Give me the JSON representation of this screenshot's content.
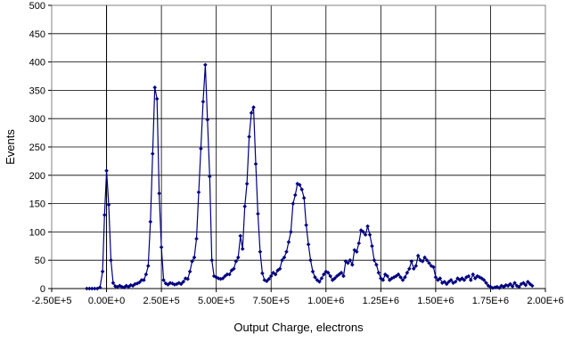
{
  "chart_data": {
    "type": "line",
    "title": "",
    "xlabel": "Output Charge, electrons",
    "ylabel": "Events",
    "xlim": [
      -250000,
      2000000
    ],
    "ylim": [
      0,
      500
    ],
    "grid": true,
    "legend": "none",
    "x_tick_values": [
      -250000,
      0,
      250000,
      500000,
      750000,
      1000000,
      1250000,
      1500000,
      1750000,
      2000000
    ],
    "x_tick_labels": [
      "-2.50E+5",
      "0.00E+0",
      "2.50E+5",
      "5.00E+5",
      "7.50E+5",
      "1.00E+6",
      "1.25E+6",
      "1.50E+6",
      "1.75E+6",
      "2.00E+6"
    ],
    "y_tick_values": [
      0,
      50,
      100,
      150,
      200,
      250,
      300,
      350,
      400,
      450,
      500
    ],
    "y_tick_labels": [
      "0",
      "50",
      "100",
      "150",
      "200",
      "250",
      "300",
      "350",
      "400",
      "450",
      "500"
    ],
    "colors": {
      "series": "#000080",
      "grid": "#000000",
      "plot_border": "#808080"
    },
    "series": [
      {
        "marker": "diamond",
        "points": [
          [
            -90000,
            0
          ],
          [
            -78000,
            0
          ],
          [
            -66000,
            0
          ],
          [
            -54000,
            0
          ],
          [
            -42000,
            0
          ],
          [
            -30000,
            2
          ],
          [
            -18000,
            30
          ],
          [
            -9000,
            130
          ],
          [
            0,
            208
          ],
          [
            10000,
            148
          ],
          [
            20000,
            50
          ],
          [
            30000,
            10
          ],
          [
            40000,
            4
          ],
          [
            50000,
            3
          ],
          [
            60000,
            5
          ],
          [
            70000,
            3
          ],
          [
            80000,
            2
          ],
          [
            90000,
            5
          ],
          [
            100000,
            3
          ],
          [
            110000,
            6
          ],
          [
            120000,
            5
          ],
          [
            130000,
            8
          ],
          [
            140000,
            9
          ],
          [
            150000,
            11
          ],
          [
            160000,
            15
          ],
          [
            170000,
            15
          ],
          [
            180000,
            25
          ],
          [
            190000,
            40
          ],
          [
            200000,
            118
          ],
          [
            210000,
            238
          ],
          [
            220000,
            355
          ],
          [
            230000,
            335
          ],
          [
            240000,
            168
          ],
          [
            250000,
            73
          ],
          [
            260000,
            15
          ],
          [
            270000,
            9
          ],
          [
            280000,
            7
          ],
          [
            290000,
            10
          ],
          [
            300000,
            9
          ],
          [
            310000,
            7
          ],
          [
            320000,
            8
          ],
          [
            330000,
            10
          ],
          [
            340000,
            8
          ],
          [
            350000,
            12
          ],
          [
            360000,
            18
          ],
          [
            370000,
            17
          ],
          [
            380000,
            30
          ],
          [
            390000,
            48
          ],
          [
            400000,
            55
          ],
          [
            410000,
            88
          ],
          [
            420000,
            170
          ],
          [
            430000,
            247
          ],
          [
            440000,
            330
          ],
          [
            450000,
            395
          ],
          [
            460000,
            298
          ],
          [
            470000,
            198
          ],
          [
            480000,
            50
          ],
          [
            490000,
            22
          ],
          [
            500000,
            20
          ],
          [
            510000,
            18
          ],
          [
            520000,
            17
          ],
          [
            530000,
            18
          ],
          [
            540000,
            22
          ],
          [
            550000,
            25
          ],
          [
            560000,
            25
          ],
          [
            570000,
            32
          ],
          [
            580000,
            35
          ],
          [
            590000,
            48
          ],
          [
            600000,
            55
          ],
          [
            610000,
            93
          ],
          [
            620000,
            70
          ],
          [
            630000,
            145
          ],
          [
            640000,
            185
          ],
          [
            650000,
            268
          ],
          [
            660000,
            310
          ],
          [
            670000,
            320
          ],
          [
            680000,
            220
          ],
          [
            690000,
            132
          ],
          [
            700000,
            65
          ],
          [
            710000,
            27
          ],
          [
            720000,
            15
          ],
          [
            730000,
            13
          ],
          [
            740000,
            17
          ],
          [
            750000,
            22
          ],
          [
            760000,
            28
          ],
          [
            770000,
            25
          ],
          [
            780000,
            32
          ],
          [
            790000,
            35
          ],
          [
            800000,
            50
          ],
          [
            810000,
            55
          ],
          [
            820000,
            65
          ],
          [
            830000,
            82
          ],
          [
            840000,
            100
          ],
          [
            850000,
            150
          ],
          [
            860000,
            165
          ],
          [
            870000,
            185
          ],
          [
            880000,
            183
          ],
          [
            890000,
            175
          ],
          [
            900000,
            160
          ],
          [
            910000,
            112
          ],
          [
            920000,
            78
          ],
          [
            930000,
            50
          ],
          [
            940000,
            30
          ],
          [
            950000,
            20
          ],
          [
            960000,
            15
          ],
          [
            970000,
            12
          ],
          [
            980000,
            18
          ],
          [
            990000,
            25
          ],
          [
            1000000,
            30
          ],
          [
            1010000,
            28
          ],
          [
            1020000,
            22
          ],
          [
            1030000,
            15
          ],
          [
            1040000,
            18
          ],
          [
            1050000,
            22
          ],
          [
            1060000,
            25
          ],
          [
            1070000,
            28
          ],
          [
            1080000,
            22
          ],
          [
            1090000,
            48
          ],
          [
            1100000,
            45
          ],
          [
            1110000,
            50
          ],
          [
            1120000,
            42
          ],
          [
            1130000,
            68
          ],
          [
            1140000,
            65
          ],
          [
            1150000,
            80
          ],
          [
            1160000,
            103
          ],
          [
            1170000,
            100
          ],
          [
            1180000,
            95
          ],
          [
            1190000,
            110
          ],
          [
            1200000,
            95
          ],
          [
            1210000,
            75
          ],
          [
            1220000,
            50
          ],
          [
            1230000,
            42
          ],
          [
            1240000,
            28
          ],
          [
            1250000,
            18
          ],
          [
            1260000,
            15
          ],
          [
            1270000,
            25
          ],
          [
            1280000,
            22
          ],
          [
            1290000,
            15
          ],
          [
            1300000,
            18
          ],
          [
            1310000,
            20
          ],
          [
            1320000,
            22
          ],
          [
            1330000,
            25
          ],
          [
            1340000,
            20
          ],
          [
            1350000,
            15
          ],
          [
            1360000,
            20
          ],
          [
            1370000,
            28
          ],
          [
            1380000,
            35
          ],
          [
            1390000,
            48
          ],
          [
            1400000,
            35
          ],
          [
            1410000,
            40
          ],
          [
            1420000,
            58
          ],
          [
            1430000,
            50
          ],
          [
            1440000,
            48
          ],
          [
            1450000,
            55
          ],
          [
            1460000,
            50
          ],
          [
            1470000,
            45
          ],
          [
            1480000,
            40
          ],
          [
            1490000,
            38
          ],
          [
            1500000,
            20
          ],
          [
            1510000,
            15
          ],
          [
            1520000,
            18
          ],
          [
            1530000,
            10
          ],
          [
            1540000,
            12
          ],
          [
            1550000,
            8
          ],
          [
            1560000,
            12
          ],
          [
            1570000,
            15
          ],
          [
            1580000,
            10
          ],
          [
            1590000,
            12
          ],
          [
            1600000,
            18
          ],
          [
            1610000,
            15
          ],
          [
            1620000,
            18
          ],
          [
            1630000,
            15
          ],
          [
            1640000,
            20
          ],
          [
            1650000,
            22
          ],
          [
            1660000,
            15
          ],
          [
            1670000,
            25
          ],
          [
            1680000,
            18
          ],
          [
            1690000,
            22
          ],
          [
            1700000,
            20
          ],
          [
            1710000,
            18
          ],
          [
            1720000,
            15
          ],
          [
            1730000,
            10
          ],
          [
            1740000,
            5
          ],
          [
            1750000,
            3
          ],
          [
            1760000,
            1
          ],
          [
            1770000,
            2
          ],
          [
            1780000,
            3
          ],
          [
            1790000,
            1
          ],
          [
            1800000,
            5
          ],
          [
            1810000,
            3
          ],
          [
            1820000,
            6
          ],
          [
            1830000,
            5
          ],
          [
            1840000,
            8
          ],
          [
            1850000,
            4
          ],
          [
            1860000,
            10
          ],
          [
            1870000,
            5
          ],
          [
            1880000,
            3
          ],
          [
            1890000,
            8
          ],
          [
            1900000,
            10
          ],
          [
            1910000,
            6
          ],
          [
            1920000,
            12
          ],
          [
            1930000,
            8
          ],
          [
            1940000,
            5
          ]
        ]
      }
    ]
  }
}
